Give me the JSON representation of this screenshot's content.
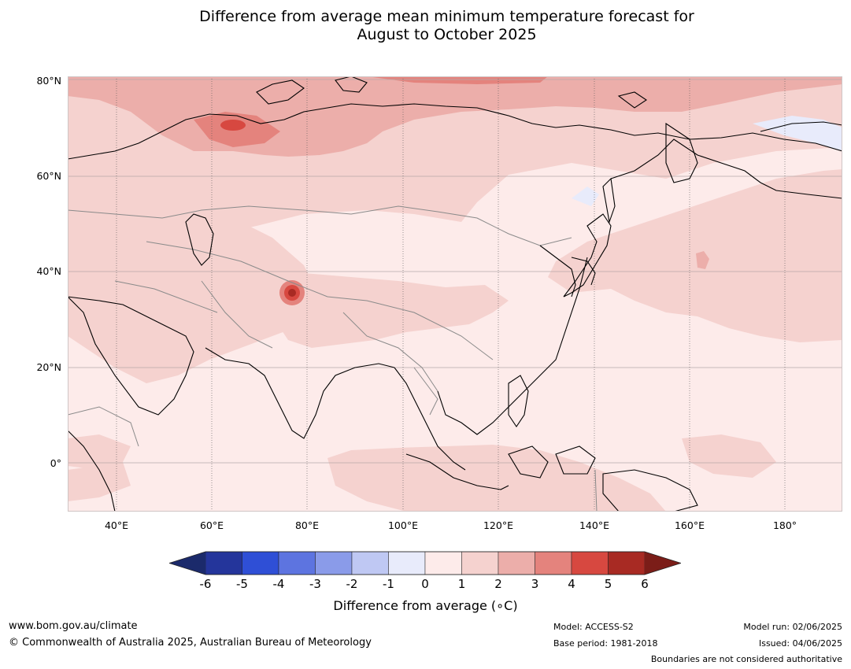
{
  "title": {
    "line1": "Difference from average mean minimum temperature forecast for",
    "line2": "August to October 2025"
  },
  "map": {
    "latitude_labels": [
      "80°N",
      "60°N",
      "40°N",
      "20°N",
      "0°"
    ],
    "longitude_labels": [
      "40°E",
      "60°E",
      "80°E",
      "100°E",
      "120°E",
      "140°E",
      "160°E",
      "180°"
    ],
    "extent": {
      "lon": [
        30,
        192
      ],
      "lat": [
        -10,
        80
      ]
    }
  },
  "colorbar": {
    "ticks": [
      "-6",
      "-5",
      "-4",
      "-3",
      "-2",
      "-1",
      "0",
      "1",
      "2",
      "3",
      "4",
      "5",
      "6"
    ],
    "colors": [
      "#24359b",
      "#2f4fd6",
      "#5d74e0",
      "#8a9be9",
      "#bfc8f3",
      "#e8ebfb",
      "#fdebea",
      "#f5d2cf",
      "#ecaeaa",
      "#e4837d",
      "#d74840",
      "#a82a23"
    ],
    "under_color": "#1b2a6b",
    "over_color": "#7b1d18",
    "label": "Difference from average (∘C)"
  },
  "footer": {
    "website": "www.bom.gov.au/climate",
    "copyright": "© Commonwealth of Australia 2025, Australian Bureau of Meteorology",
    "model": "Model: ACCESS-S2",
    "base_period": "Base period: 1981-2018",
    "model_run": "Model run: 02/06/2025",
    "issued": "Issued: 04/06/2025",
    "disclaimer": "Boundaries are not considered authoritative"
  }
}
